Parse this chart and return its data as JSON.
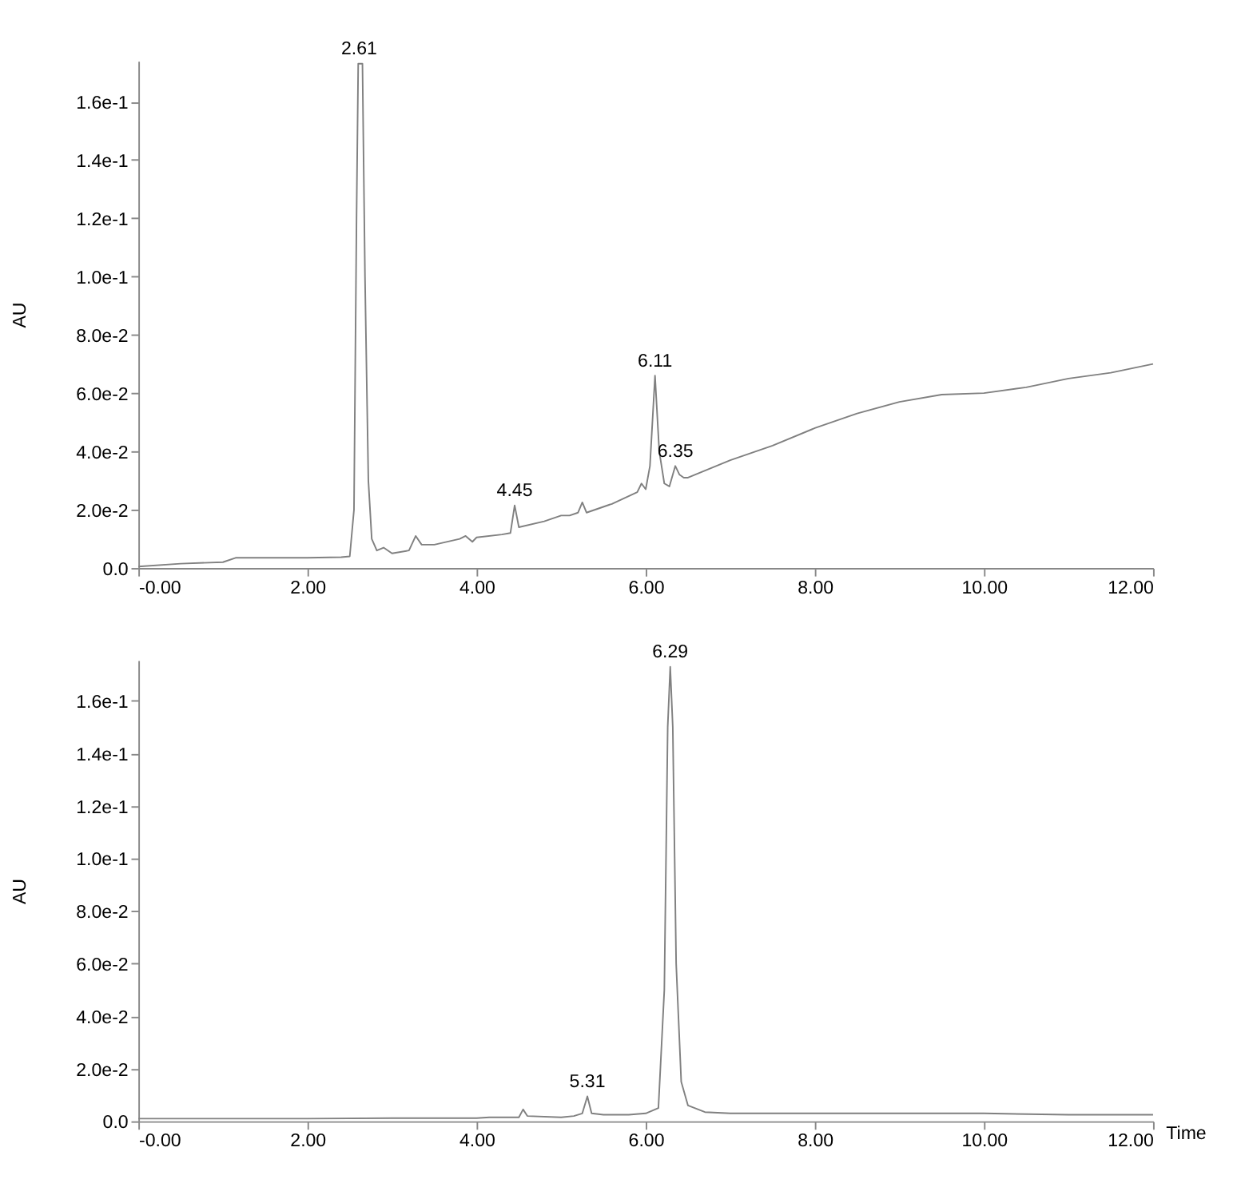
{
  "chart_data": [
    {
      "type": "line",
      "ylabel": "AU",
      "grid": false,
      "marker": "none",
      "line_style": "solid",
      "x": [
        0.0,
        0.5,
        1.0,
        1.15,
        1.5,
        2.0,
        2.4,
        2.5,
        2.55,
        2.58,
        2.6,
        2.65,
        2.68,
        2.72,
        2.76,
        2.82,
        2.9,
        3.0,
        3.2,
        3.28,
        3.35,
        3.5,
        3.8,
        3.87,
        3.95,
        4.0,
        4.3,
        4.4,
        4.45,
        4.5,
        4.8,
        5.0,
        5.1,
        5.2,
        5.25,
        5.3,
        5.6,
        5.9,
        5.95,
        6.0,
        6.05,
        6.11,
        6.16,
        6.22,
        6.28,
        6.35,
        6.4,
        6.45,
        6.5,
        7.0,
        7.5,
        8.0,
        8.5,
        9.0,
        9.5,
        10.0,
        10.5,
        11.0,
        11.5,
        12.0
      ],
      "series": [
        {
          "color": "#808080",
          "values": [
            0.0005,
            0.0015,
            0.002,
            0.0035,
            0.0035,
            0.0035,
            0.0037,
            0.004,
            0.02,
            0.12,
            0.173,
            0.173,
            0.1,
            0.03,
            0.01,
            0.006,
            0.007,
            0.005,
            0.006,
            0.011,
            0.008,
            0.008,
            0.01,
            0.011,
            0.009,
            0.0105,
            0.0115,
            0.012,
            0.0215,
            0.014,
            0.016,
            0.018,
            0.018,
            0.019,
            0.0225,
            0.019,
            0.022,
            0.026,
            0.029,
            0.027,
            0.035,
            0.066,
            0.04,
            0.029,
            0.028,
            0.035,
            0.032,
            0.031,
            0.031,
            0.037,
            0.042,
            0.048,
            0.053,
            0.057,
            0.0595,
            0.06,
            0.062,
            0.065,
            0.067,
            0.07
          ]
        }
      ],
      "xlim": [
        0,
        12
      ],
      "ylim": [
        0,
        0.174
      ],
      "xticks": [
        {
          "value": 0,
          "label": "-0.00"
        },
        {
          "value": 2,
          "label": "2.00"
        },
        {
          "value": 4,
          "label": "4.00"
        },
        {
          "value": 6,
          "label": "6.00"
        },
        {
          "value": 8,
          "label": "8.00"
        },
        {
          "value": 10,
          "label": "10.00"
        },
        {
          "value": 12,
          "label": "12.00"
        }
      ],
      "yticks": [
        {
          "value": 0,
          "label": "0.0"
        },
        {
          "value": 0.02,
          "label": "2.0e-2"
        },
        {
          "value": 0.04,
          "label": "4.0e-2"
        },
        {
          "value": 0.06,
          "label": "6.0e-2"
        },
        {
          "value": 0.08,
          "label": "8.0e-2"
        },
        {
          "value": 0.1,
          "label": "1.0e-1"
        },
        {
          "value": 0.12,
          "label": "1.2e-1"
        },
        {
          "value": 0.14,
          "label": "1.4e-1"
        },
        {
          "value": 0.16,
          "label": "1.6e-1"
        }
      ],
      "annotations": [
        {
          "text": "2.61",
          "x": 2.61,
          "y": 0.173
        },
        {
          "text": "4.45",
          "x": 4.45,
          "y": 0.0215
        },
        {
          "text": "6.11",
          "x": 6.11,
          "y": 0.066
        },
        {
          "text": "6.35",
          "x": 6.35,
          "y": 0.035
        }
      ]
    },
    {
      "type": "line",
      "ylabel": "AU",
      "xlabel": "Time",
      "grid": false,
      "marker": "none",
      "line_style": "solid",
      "x": [
        0.0,
        2.0,
        3.0,
        4.0,
        4.15,
        4.5,
        4.55,
        4.6,
        5.0,
        5.15,
        5.25,
        5.31,
        5.36,
        5.5,
        5.8,
        6.0,
        6.15,
        6.22,
        6.26,
        6.29,
        6.32,
        6.36,
        6.42,
        6.5,
        6.7,
        7.0,
        8.0,
        9.0,
        10.0,
        11.0,
        12.0
      ],
      "series": [
        {
          "color": "#808080",
          "values": [
            0.001,
            0.001,
            0.0012,
            0.0012,
            0.0015,
            0.0015,
            0.0045,
            0.002,
            0.0015,
            0.002,
            0.003,
            0.0095,
            0.003,
            0.0025,
            0.0025,
            0.003,
            0.005,
            0.05,
            0.15,
            0.173,
            0.15,
            0.06,
            0.015,
            0.006,
            0.0035,
            0.003,
            0.003,
            0.003,
            0.003,
            0.0025,
            0.0025
          ]
        }
      ],
      "xlim": [
        0,
        12
      ],
      "ylim": [
        0,
        0.1755
      ],
      "xticks": [
        {
          "value": 0,
          "label": "-0.00"
        },
        {
          "value": 2,
          "label": "2.00"
        },
        {
          "value": 4,
          "label": "4.00"
        },
        {
          "value": 6,
          "label": "6.00"
        },
        {
          "value": 8,
          "label": "8.00"
        },
        {
          "value": 10,
          "label": "10.00"
        },
        {
          "value": 12,
          "label": "12.00"
        }
      ],
      "yticks": [
        {
          "value": 0,
          "label": "0.0"
        },
        {
          "value": 0.02,
          "label": "2.0e-2"
        },
        {
          "value": 0.04,
          "label": "4.0e-2"
        },
        {
          "value": 0.06,
          "label": "6.0e-2"
        },
        {
          "value": 0.08,
          "label": "8.0e-2"
        },
        {
          "value": 0.1,
          "label": "1.0e-1"
        },
        {
          "value": 0.12,
          "label": "1.2e-1"
        },
        {
          "value": 0.14,
          "label": "1.4e-1"
        },
        {
          "value": 0.16,
          "label": "1.6e-1"
        }
      ],
      "annotations": [
        {
          "text": "5.31",
          "x": 5.31,
          "y": 0.0095
        },
        {
          "text": "6.29",
          "x": 6.29,
          "y": 0.173
        }
      ]
    }
  ]
}
